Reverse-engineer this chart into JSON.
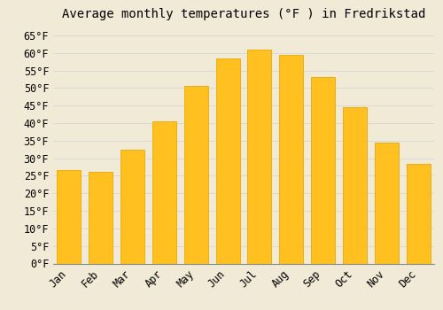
{
  "title": "Average monthly temperatures (°F ) in Fredrikstad",
  "months": [
    "Jan",
    "Feb",
    "Mar",
    "Apr",
    "May",
    "Jun",
    "Jul",
    "Aug",
    "Sep",
    "Oct",
    "Nov",
    "Dec"
  ],
  "values": [
    26.5,
    26.0,
    32.5,
    40.5,
    50.5,
    58.5,
    61.0,
    59.5,
    53.0,
    44.5,
    34.5,
    28.5
  ],
  "bar_color": "#FFC020",
  "bar_edge_color": "#E8A800",
  "background_color": "#F0EAD6",
  "grid_color": "#D8D8D8",
  "ylim": [
    0,
    68
  ],
  "yticks": [
    0,
    5,
    10,
    15,
    20,
    25,
    30,
    35,
    40,
    45,
    50,
    55,
    60,
    65
  ],
  "title_fontsize": 10,
  "tick_fontsize": 8.5,
  "font_family": "monospace"
}
